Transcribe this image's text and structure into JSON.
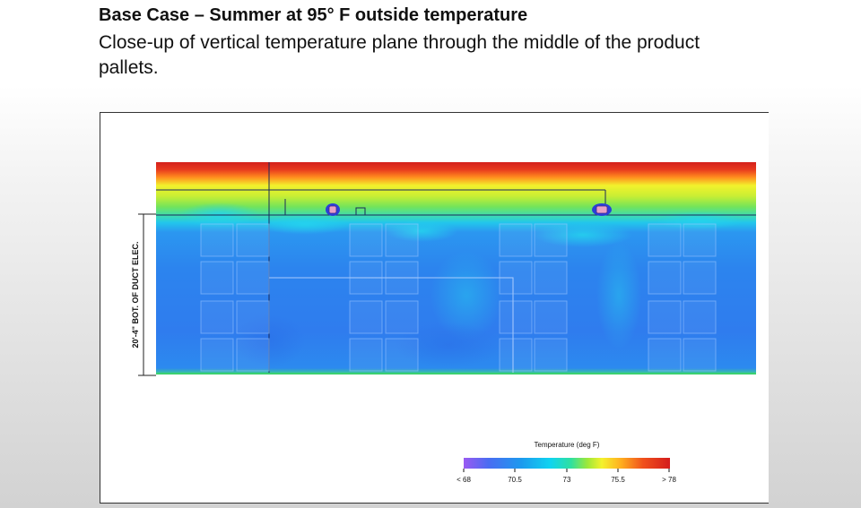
{
  "slide": {
    "title": "Base Case – Summer at 95° F outside temperature",
    "subtitle": "Close-up of vertical temperature plane through the middle of the product pallets."
  },
  "figure": {
    "dimension_label": "20'-4\" BOT. OF DUCT ELEC.",
    "legend": {
      "title": "Temperature (deg F)",
      "ticks": [
        "< 68",
        "70.5",
        "73",
        "75.5",
        "> 78"
      ],
      "range": [
        68,
        78
      ],
      "colors": [
        "#8a4cf0",
        "#2f6ff2",
        "#12c8ee",
        "#27e0a0",
        "#9be83a",
        "#f5f52a",
        "#ffaa1e",
        "#f0501c",
        "#d81c1c"
      ]
    },
    "pallet_stacks": 4,
    "pallet_rows": 4,
    "duct_count": 2
  }
}
